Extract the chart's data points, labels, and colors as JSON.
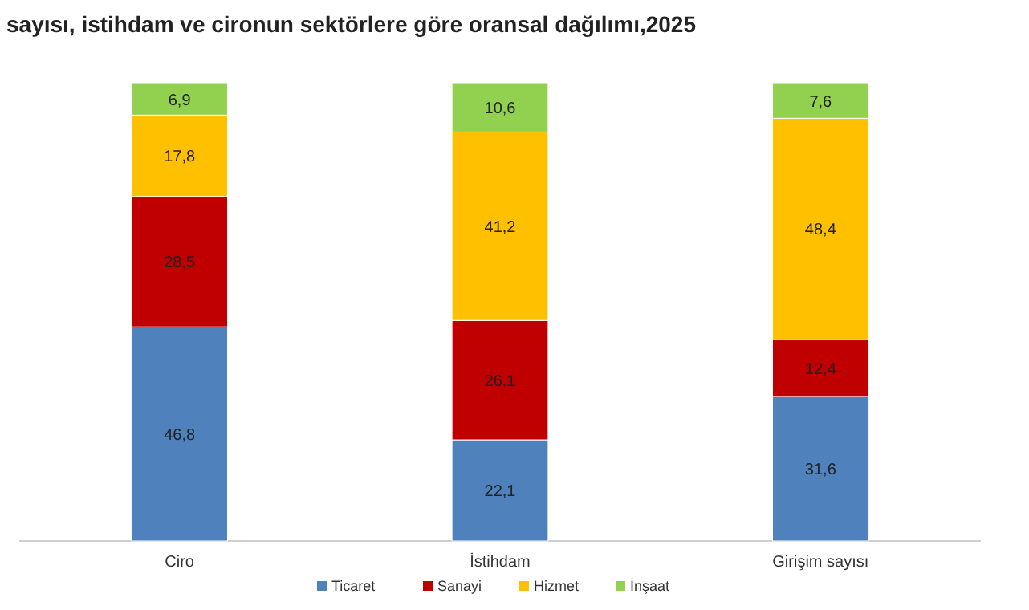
{
  "chart_data": {
    "type": "bar",
    "stacked": true,
    "title": "sayısı, istihdam ve cironun sektörlere göre oransal dağılımı,2025",
    "categories": [
      "Ciro",
      "İstihdam",
      "Girişim sayısı"
    ],
    "legend": "bottom",
    "series": [
      {
        "name": "Ticaret",
        "color": "#4f81bd",
        "values": [
          46.8,
          22.1,
          31.6
        ],
        "value_labels": [
          "46,8",
          "22,1",
          "31,6"
        ]
      },
      {
        "name": "Sanayi",
        "color": "#c00000",
        "values": [
          28.5,
          26.1,
          12.4
        ],
        "value_labels": [
          "28,5",
          "26,1",
          "12,4"
        ]
      },
      {
        "name": "Hizmet",
        "color": "#ffc000",
        "values": [
          17.8,
          41.2,
          48.4
        ],
        "value_labels": [
          "17,8",
          "41,2",
          "48,4"
        ]
      },
      {
        "name": "İnşaat",
        "color": "#92d050",
        "values": [
          6.9,
          10.6,
          7.6
        ],
        "value_labels": [
          "6,9",
          "10,6",
          "7,6"
        ]
      }
    ]
  }
}
